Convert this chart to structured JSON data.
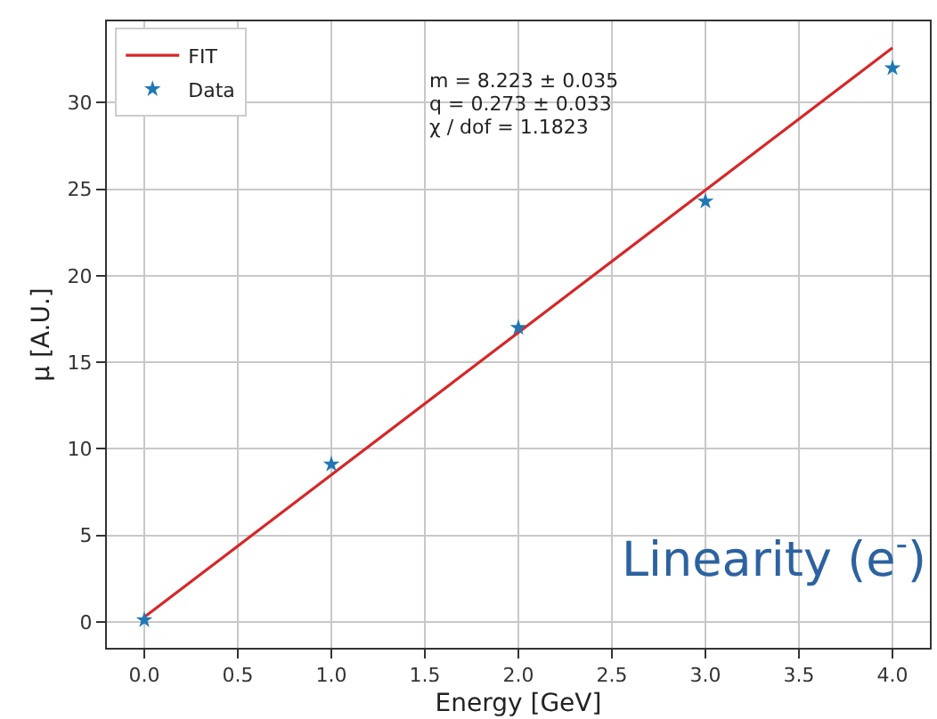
{
  "chart_data": {
    "type": "scatter",
    "xlabel": "Energy [GeV]",
    "ylabel": "μ [A.U.]",
    "x": [
      0,
      1,
      2,
      3,
      4
    ],
    "series": [
      {
        "name": "FIT",
        "type": "line",
        "color": "#d62728",
        "x": [
          0,
          4
        ],
        "values": [
          0.27,
          33.17
        ],
        "marker": "none"
      },
      {
        "name": "Data",
        "color": "#1f77b4",
        "values": [
          0.1,
          9.1,
          17.0,
          24.3,
          32.0
        ],
        "marker": "star"
      }
    ],
    "annotations": [
      "m = 8.223 ± 0.035",
      "q = 0.273 ± 0.033",
      "χ / dof = 1.1823",
      "Linearity (e$^{-}$)"
    ],
    "xlim": [
      -0.2,
      4.2
    ],
    "ylim": [
      -1.5,
      34.7
    ],
    "xticks": [
      {
        "value": 0,
        "label": "0.0"
      },
      {
        "value": 0.5,
        "label": "0.5"
      },
      {
        "value": 1,
        "label": "1.0"
      },
      {
        "value": 1.5,
        "label": "1.5"
      },
      {
        "value": 2,
        "label": "2.0"
      },
      {
        "value": 2.5,
        "label": "2.5"
      },
      {
        "value": 3,
        "label": "3.0"
      },
      {
        "value": 3.5,
        "label": "3.5"
      },
      {
        "value": 4,
        "label": "4.0"
      }
    ],
    "yticks": [
      0,
      5,
      10,
      15,
      20,
      25,
      30
    ],
    "grid": true,
    "legend": "top left"
  }
}
